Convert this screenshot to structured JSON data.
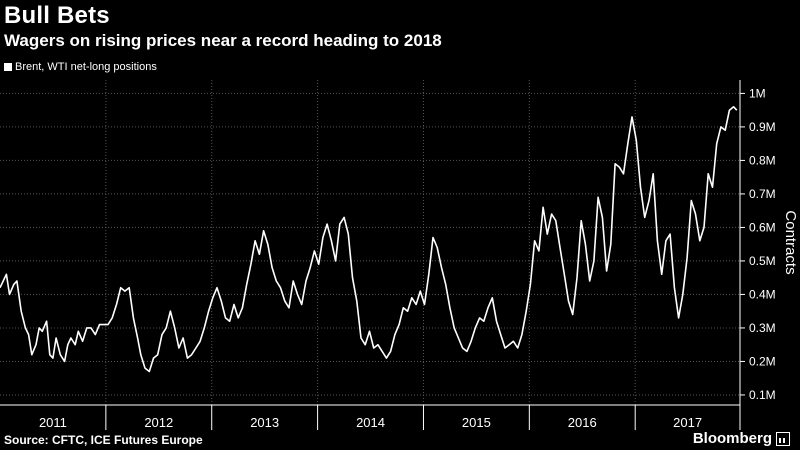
{
  "header": {
    "title": "Bull Bets",
    "subtitle": "Wagers on rising prices near a record heading to 2018"
  },
  "footer": {
    "source": "Source: CFTC, ICE Futures Europe",
    "brand": "Bloomberg"
  },
  "colors": {
    "background": "#000000",
    "line": "#ffffff",
    "grid": "#555555"
  },
  "chart_data": {
    "type": "line",
    "title": "Bull Bets",
    "subtitle": "Wagers on rising prices near a record heading to 2018",
    "ylabel": "Contracts",
    "legend": {
      "entries": [
        "Brent, WTI net-long positions"
      ],
      "placement": "top-left"
    },
    "ylim": [
      0.07,
      1.04
    ],
    "xlim": [
      2011.0,
      2017.99
    ],
    "y_ticks": [
      {
        "value": 0.1,
        "label": "0.1M"
      },
      {
        "value": 0.2,
        "label": "0.2M"
      },
      {
        "value": 0.3,
        "label": "0.3M"
      },
      {
        "value": 0.4,
        "label": "0.4M"
      },
      {
        "value": 0.5,
        "label": "0.5M"
      },
      {
        "value": 0.6,
        "label": "0.6M"
      },
      {
        "value": 0.7,
        "label": "0.7M"
      },
      {
        "value": 0.8,
        "label": "0.8M"
      },
      {
        "value": 0.9,
        "label": "0.9M"
      },
      {
        "value": 1.0,
        "label": "1M"
      }
    ],
    "x_ticks": [
      "2011",
      "2012",
      "2013",
      "2014",
      "2015",
      "2016",
      "2017"
    ],
    "grid": true,
    "y_unit": "million contracts",
    "series": [
      {
        "name": "Brent, WTI net-long positions",
        "x": [
          2011.0,
          2011.03,
          2011.06,
          2011.09,
          2011.13,
          2011.16,
          2011.2,
          2011.24,
          2011.27,
          2011.3,
          2011.34,
          2011.37,
          2011.4,
          2011.44,
          2011.47,
          2011.5,
          2011.53,
          2011.57,
          2011.61,
          2011.64,
          2011.67,
          2011.71,
          2011.74,
          2011.78,
          2011.82,
          2011.86,
          2011.9,
          2011.94,
          2011.98,
          2012.02,
          2012.06,
          2012.1,
          2012.14,
          2012.18,
          2012.22,
          2012.26,
          2012.3,
          2012.33,
          2012.37,
          2012.41,
          2012.45,
          2012.49,
          2012.53,
          2012.57,
          2012.61,
          2012.65,
          2012.69,
          2012.73,
          2012.77,
          2012.81,
          2012.85,
          2012.89,
          2012.93,
          2012.97,
          2013.01,
          2013.05,
          2013.09,
          2013.13,
          2013.17,
          2013.21,
          2013.25,
          2013.29,
          2013.33,
          2013.37,
          2013.41,
          2013.45,
          2013.49,
          2013.53,
          2013.57,
          2013.61,
          2013.65,
          2013.69,
          2013.73,
          2013.77,
          2013.81,
          2013.85,
          2013.89,
          2013.93,
          2013.97,
          2014.01,
          2014.05,
          2014.09,
          2014.13,
          2014.17,
          2014.21,
          2014.25,
          2014.29,
          2014.33,
          2014.37,
          2014.41,
          2014.45,
          2014.49,
          2014.53,
          2014.57,
          2014.61,
          2014.65,
          2014.69,
          2014.73,
          2014.77,
          2014.81,
          2014.85,
          2014.89,
          2014.93,
          2014.97,
          2015.01,
          2015.05,
          2015.09,
          2015.13,
          2015.17,
          2015.21,
          2015.25,
          2015.29,
          2015.33,
          2015.37,
          2015.41,
          2015.45,
          2015.49,
          2015.53,
          2015.57,
          2015.61,
          2015.65,
          2015.69,
          2015.73,
          2015.77,
          2015.81,
          2015.85,
          2015.89,
          2015.93,
          2015.97,
          2016.01,
          2016.05,
          2016.09,
          2016.13,
          2016.17,
          2016.21,
          2016.25,
          2016.29,
          2016.33,
          2016.37,
          2016.41,
          2016.45,
          2016.49,
          2016.53,
          2016.57,
          2016.61,
          2016.65,
          2016.69,
          2016.73,
          2016.77,
          2016.81,
          2016.85,
          2016.89,
          2016.93,
          2016.97,
          2017.01,
          2017.05,
          2017.09,
          2017.13,
          2017.17,
          2017.21,
          2017.25,
          2017.29,
          2017.33,
          2017.37,
          2017.41,
          2017.45,
          2017.49,
          2017.53,
          2017.57,
          2017.61,
          2017.65,
          2017.69,
          2017.73,
          2017.77,
          2017.81,
          2017.85,
          2017.89,
          2017.93,
          2017.96
        ],
        "values": [
          0.42,
          0.44,
          0.46,
          0.4,
          0.43,
          0.44,
          0.35,
          0.3,
          0.28,
          0.22,
          0.25,
          0.3,
          0.29,
          0.32,
          0.22,
          0.21,
          0.27,
          0.22,
          0.2,
          0.25,
          0.27,
          0.25,
          0.29,
          0.26,
          0.3,
          0.3,
          0.28,
          0.31,
          0.31,
          0.31,
          0.33,
          0.37,
          0.42,
          0.41,
          0.42,
          0.33,
          0.27,
          0.22,
          0.18,
          0.17,
          0.21,
          0.22,
          0.28,
          0.3,
          0.35,
          0.3,
          0.24,
          0.27,
          0.21,
          0.22,
          0.24,
          0.26,
          0.3,
          0.35,
          0.39,
          0.42,
          0.38,
          0.33,
          0.32,
          0.37,
          0.33,
          0.36,
          0.43,
          0.49,
          0.56,
          0.52,
          0.59,
          0.55,
          0.48,
          0.44,
          0.42,
          0.38,
          0.36,
          0.44,
          0.4,
          0.37,
          0.44,
          0.48,
          0.53,
          0.49,
          0.57,
          0.61,
          0.56,
          0.5,
          0.61,
          0.63,
          0.58,
          0.45,
          0.38,
          0.27,
          0.25,
          0.29,
          0.24,
          0.25,
          0.23,
          0.21,
          0.23,
          0.28,
          0.31,
          0.36,
          0.35,
          0.39,
          0.37,
          0.41,
          0.37,
          0.46,
          0.57,
          0.54,
          0.48,
          0.43,
          0.36,
          0.3,
          0.27,
          0.24,
          0.23,
          0.26,
          0.3,
          0.33,
          0.32,
          0.36,
          0.39,
          0.32,
          0.28,
          0.24,
          0.25,
          0.26,
          0.24,
          0.28,
          0.35,
          0.43,
          0.56,
          0.53,
          0.66,
          0.58,
          0.64,
          0.62,
          0.54,
          0.46,
          0.38,
          0.34,
          0.45,
          0.62,
          0.55,
          0.44,
          0.5,
          0.69,
          0.63,
          0.47,
          0.55,
          0.79,
          0.78,
          0.76,
          0.85,
          0.93,
          0.86,
          0.72,
          0.63,
          0.68,
          0.76,
          0.56,
          0.46,
          0.56,
          0.58,
          0.42,
          0.33,
          0.4,
          0.51,
          0.68,
          0.64,
          0.56,
          0.6,
          0.76,
          0.72,
          0.85,
          0.9,
          0.89,
          0.95,
          0.96,
          0.95
        ]
      }
    ]
  }
}
